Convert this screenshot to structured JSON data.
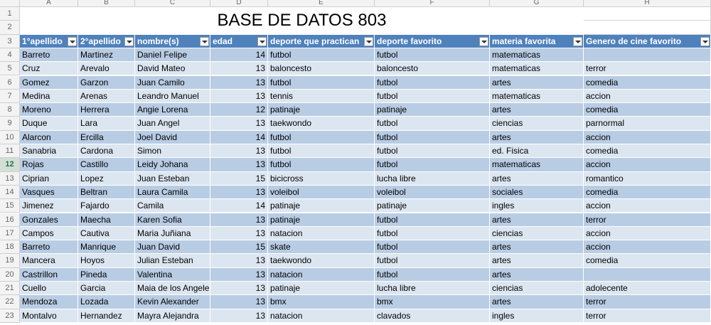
{
  "sheet": {
    "columns": [
      "A",
      "B",
      "C",
      "D",
      "E",
      "F",
      "G",
      "H"
    ],
    "row_numbers": [
      1,
      2,
      3,
      4,
      5,
      6,
      7,
      8,
      9,
      10,
      11,
      12,
      13,
      14,
      15,
      16,
      17,
      18,
      19,
      20,
      21,
      22,
      23
    ],
    "title": "BASE DE DATOS 803",
    "headers": [
      "1°apellido",
      "2°apellido",
      "nombre(s)",
      "edad",
      "deporte que practican",
      "deporte favorito",
      "materia favorita",
      "Genero de cine favorito"
    ],
    "rows": [
      [
        "Barreto",
        "Martinez",
        "Daniel Felipe",
        14,
        "futbol",
        "futbol",
        "matematicas",
        null
      ],
      [
        "Cruz",
        "Arevalo",
        "David Mateo",
        13,
        "baloncesto",
        "baloncesto",
        "matematicas",
        "terror"
      ],
      [
        "Gomez",
        "Garzon",
        "Juan Camilo",
        13,
        "futbol",
        "futbol",
        "artes",
        "comedia"
      ],
      [
        "Medina",
        "Arenas",
        "Leandro Manuel",
        13,
        "tennis",
        "futbol",
        "matematicas",
        "accion"
      ],
      [
        "Moreno",
        "Herrera",
        "Angie Lorena",
        12,
        "patinaje",
        "patinaje",
        "artes",
        "comedia"
      ],
      [
        "Duque",
        "Lara",
        "Juan Angel",
        13,
        "taekwondo",
        "futbol",
        "ciencias",
        "parnormal"
      ],
      [
        "Alarcon",
        "Ercilla",
        "Joel David",
        14,
        "futbol",
        "futbol",
        "artes",
        "accion"
      ],
      [
        "Sanabria",
        "Cardona",
        "Simon",
        13,
        "futbol",
        "futbol",
        "ed. Fisica",
        "comedia"
      ],
      [
        "Rojas",
        "Castillo",
        "Leidy Johana",
        13,
        "futbol",
        "futbol",
        "matematicas",
        "accion"
      ],
      [
        "Ciprian",
        "Lopez",
        "Juan Esteban",
        15,
        "bicicross",
        "lucha libre",
        "artes",
        "romantico"
      ],
      [
        "Vasques",
        "Beltran",
        "Laura Camila",
        13,
        "voleibol",
        "voleibol",
        "sociales",
        "comedia"
      ],
      [
        "Jimenez",
        "Fajardo",
        "Camila",
        14,
        "patinaje",
        "patinaje",
        "ingles",
        "accion"
      ],
      [
        "Gonzales",
        "Maecha",
        "Karen Sofia",
        13,
        "patinaje",
        "futbol",
        "artes",
        "terror"
      ],
      [
        "Campos",
        "Cautiva",
        "Maria Juñiana",
        13,
        "natacion",
        "futbol",
        "ciencias",
        "accion"
      ],
      [
        "Barreto",
        "Manrique",
        "Juan David",
        15,
        "skate",
        "futbol",
        "artes",
        "accion"
      ],
      [
        "Mancera",
        "Hoyos",
        "Julian Esteban",
        13,
        "taekwondo",
        "futbol",
        "artes",
        "comedia"
      ],
      [
        "Castrillon",
        "Pineda",
        "Valentina",
        13,
        "natacion",
        "futbol",
        "artes",
        null
      ],
      [
        "Cuello",
        "Garcia",
        "Maia de los Angele",
        13,
        "patinaje",
        "lucha libre",
        "ciencias",
        "adolecente"
      ],
      [
        "Mendoza",
        "Lozada",
        "Kevin Alexander",
        13,
        "bmx",
        "bmx",
        "artes",
        "terror"
      ],
      [
        "Montalvo",
        "Hernandez",
        "Mayra Alejandra",
        13,
        "natacion",
        "clavados",
        "ingles",
        "terror"
      ]
    ],
    "selected_row": 12
  }
}
